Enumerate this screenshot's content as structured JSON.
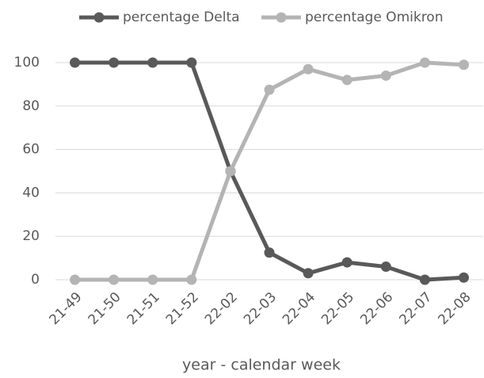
{
  "chart_data": {
    "type": "line",
    "x_label": "year - calendar week",
    "categories": [
      "21-49",
      "21-50",
      "21-51",
      "21-52",
      "22-02",
      "22-03",
      "22-04",
      "22-05",
      "22-06",
      "22-07",
      "22-08"
    ],
    "series": [
      {
        "name": "percentage Delta",
        "color": "#595959",
        "values": [
          100,
          100,
          100,
          100,
          50,
          12.5,
          3,
          8,
          6,
          0,
          1
        ]
      },
      {
        "name": "percentage Omikron",
        "color": "#b4b4b4",
        "values": [
          0,
          0,
          0,
          0,
          50,
          87.5,
          97,
          92,
          94,
          100,
          99
        ]
      }
    ],
    "ylim": [
      0,
      100
    ],
    "yticks": [
      0,
      20,
      40,
      60,
      80,
      100
    ],
    "grid": true,
    "legend": "top"
  }
}
